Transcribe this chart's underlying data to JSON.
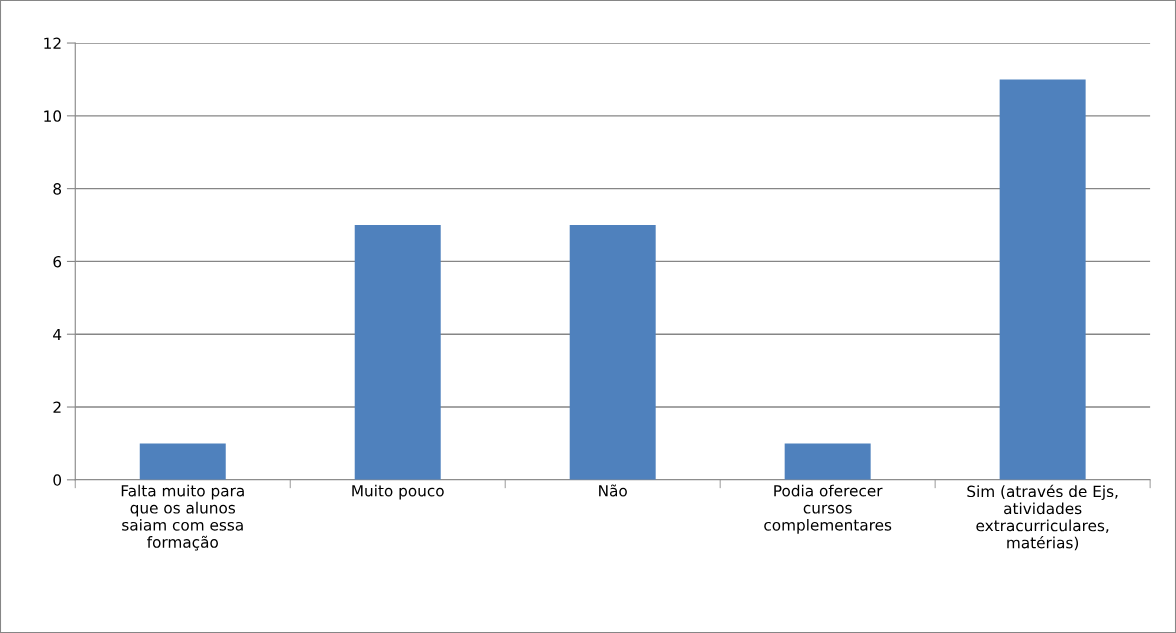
{
  "chart_data": {
    "type": "bar",
    "categories": [
      "Falta muito para\nque os alunos\nsaiam com essa\nformação",
      "Muito pouco",
      "Não",
      "Podia oferecer\ncursos\ncomplementares",
      "Sim (através de Ejs,\natividades\nextracurriculares,\nmatérias)"
    ],
    "values": [
      1,
      7,
      7,
      1,
      11
    ],
    "color": "#4f81bd",
    "ylim": [
      0,
      12
    ],
    "yticks": [
      0,
      2,
      4,
      6,
      8,
      10,
      12
    ],
    "grid": "y"
  }
}
